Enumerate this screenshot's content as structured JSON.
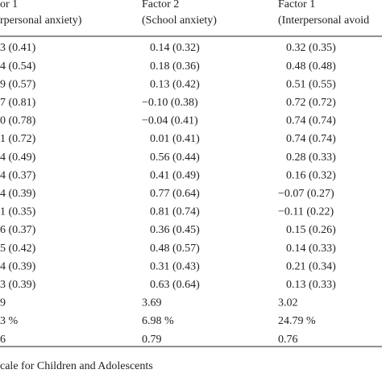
{
  "table": {
    "header": [
      [
        "or 1",
        "rpersonal anxiety)"
      ],
      [
        "Factor 2",
        "(School anxiety)"
      ],
      [
        "Factor 1",
        "(Interpersonal avoid"
      ]
    ],
    "rows": [
      [
        "3 (0.41)",
        "0.14 (0.32)",
        "0.32 (0.35)"
      ],
      [
        "4 (0.54)",
        "0.18 (0.36)",
        "0.48 (0.48)"
      ],
      [
        "9 (0.57)",
        "0.13 (0.42)",
        "0.51 (0.55)"
      ],
      [
        "7 (0.81)",
        "−0.10 (0.38)",
        "0.72 (0.72)"
      ],
      [
        "0 (0.78)",
        "−0.04 (0.41)",
        "0.74 (0.74)"
      ],
      [
        "1 (0.72)",
        "0.01 (0.41)",
        "0.74 (0.74)"
      ],
      [
        "4 (0.49)",
        "0.56 (0.44)",
        "0.28 (0.33)"
      ],
      [
        "4 (0.37)",
        "0.41 (0.49)",
        "0.16 (0.32)"
      ],
      [
        "4 (0.39)",
        "0.77 (0.64)",
        "−0.07 (0.27)"
      ],
      [
        "1 (0.35)",
        "0.81 (0.74)",
        "−0.11 (0.22)"
      ],
      [
        "6 (0.37)",
        "0.36 (0.45)",
        "0.15 (0.26)"
      ],
      [
        "5 (0.42)",
        "0.48 (0.57)",
        "0.14 (0.33)"
      ],
      [
        "4 (0.39)",
        "0.31 (0.43)",
        "0.21 (0.34)"
      ],
      [
        "3 (0.39)",
        "0.63 (0.64)",
        "0.13 (0.33)"
      ],
      [
        "9",
        "3.69",
        "3.02"
      ],
      [
        "3 %",
        "6.98 %",
        "24.79 %"
      ],
      [
        "6",
        "0.79",
        "0.76"
      ]
    ],
    "footnote": "cale for Children and Adolescents"
  }
}
